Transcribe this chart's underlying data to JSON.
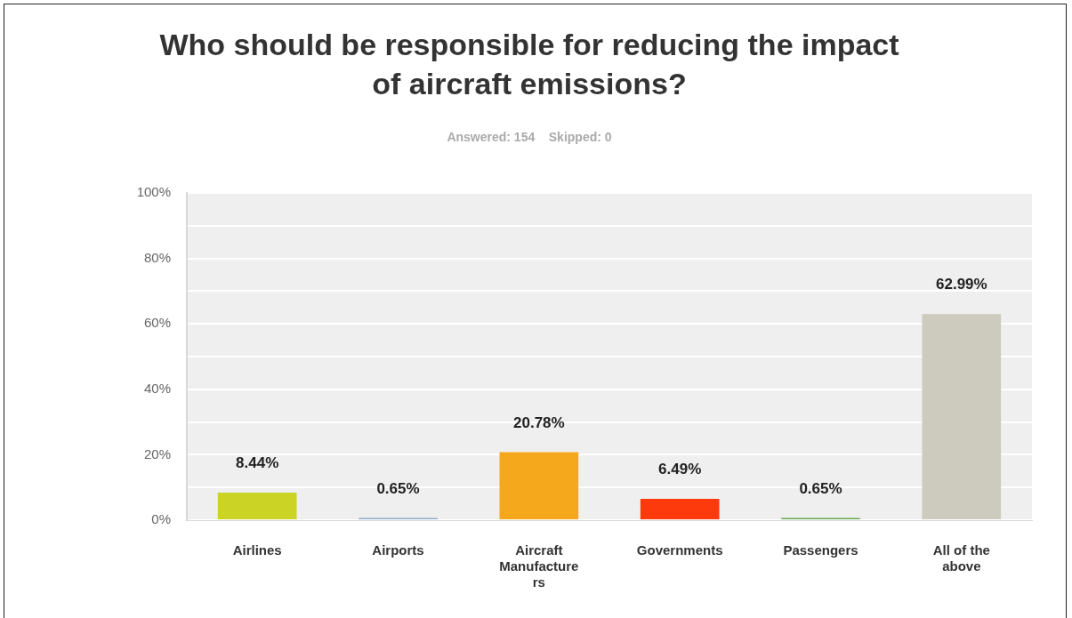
{
  "chart_data": {
    "type": "bar",
    "title": "Who should be responsible for reducing the impact of aircraft emissions?",
    "subtitle": "Answered: 154    Skipped: 0",
    "categories": [
      "Airlines",
      "Airports",
      "Aircraft Manufacturers",
      "Governments",
      "Passengers",
      "All of the above"
    ],
    "values": [
      8.44,
      0.65,
      20.78,
      6.49,
      0.65,
      62.99
    ],
    "colors": [
      "#cbd424",
      "#8fa8c8",
      "#f5a81c",
      "#fd3a0c",
      "#6aa84f",
      "#cdcbbd"
    ],
    "value_labels": [
      "8.44%",
      "0.65%",
      "20.78%",
      "6.49%",
      "0.65%",
      "62.99%"
    ],
    "ylim": [
      0,
      100
    ],
    "yticks": [
      {
        "value": 0,
        "label": "0%"
      },
      {
        "value": 10,
        "label": null
      },
      {
        "value": 20,
        "label": "20%"
      },
      {
        "value": 30,
        "label": null
      },
      {
        "value": 40,
        "label": "40%"
      },
      {
        "value": 50,
        "label": null
      },
      {
        "value": 60,
        "label": "60%"
      },
      {
        "value": 70,
        "label": null
      },
      {
        "value": 80,
        "label": "80%"
      },
      {
        "value": 90,
        "label": null
      },
      {
        "value": 100,
        "label": "100%"
      }
    ],
    "grid": "y",
    "legend": false
  }
}
